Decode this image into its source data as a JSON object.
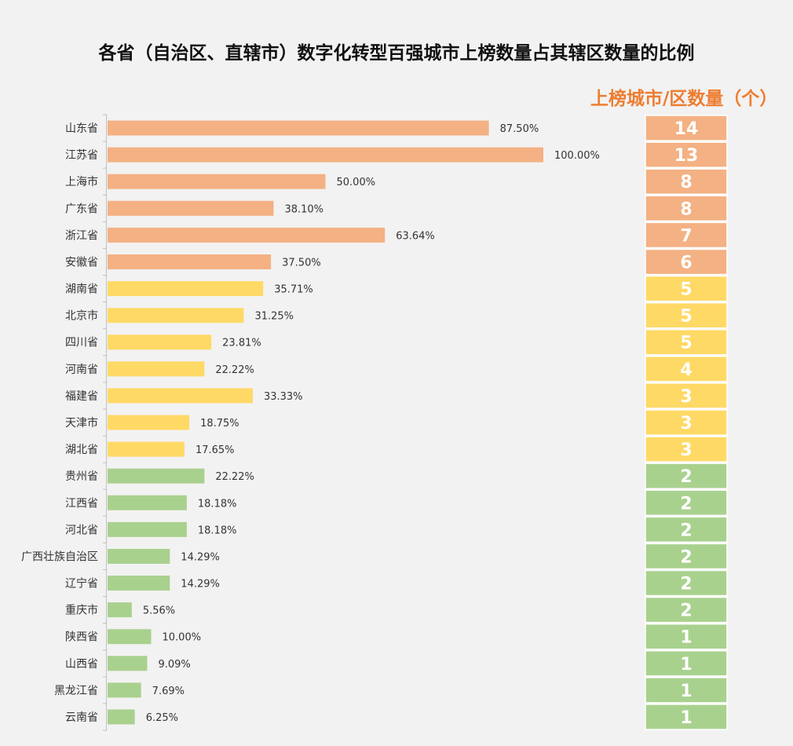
{
  "chart_data": {
    "type": "bar",
    "orientation": "horizontal",
    "title": "各省（自治区、直辖市）数字化转型百强城市上榜数量占其辖区数量的比例",
    "count_header": "上榜城市/区数量（个）",
    "xlim": [
      0,
      100
    ],
    "value_suffix": "%",
    "colors": {
      "tier1": "#f4b183",
      "tier2": "#ffd966",
      "tier3": "#a9d18e"
    },
    "categories": [
      "山东省",
      "江苏省",
      "上海市",
      "广东省",
      "浙江省",
      "安徽省",
      "湖南省",
      "北京市",
      "四川省",
      "河南省",
      "福建省",
      "天津市",
      "湖北省",
      "贵州省",
      "江西省",
      "河北省",
      "广西壮族自治区",
      "辽宁省",
      "重庆市",
      "陕西省",
      "山西省",
      "黑龙江省",
      "云南省"
    ],
    "values": [
      87.5,
      100.0,
      50.0,
      38.1,
      63.64,
      37.5,
      35.71,
      31.25,
      23.81,
      22.22,
      33.33,
      18.75,
      17.65,
      22.22,
      18.18,
      18.18,
      14.29,
      14.29,
      5.56,
      10.0,
      9.09,
      7.69,
      6.25
    ],
    "value_labels": [
      "87.50%",
      "100.00%",
      "50.00%",
      "38.10%",
      "63.64%",
      "37.50%",
      "35.71%",
      "31.25%",
      "23.81%",
      "22.22%",
      "33.33%",
      "18.75%",
      "17.65%",
      "22.22%",
      "18.18%",
      "18.18%",
      "14.29%",
      "14.29%",
      "5.56%",
      "10.00%",
      "9.09%",
      "7.69%",
      "6.25%"
    ],
    "counts": [
      14,
      13,
      8,
      8,
      7,
      6,
      5,
      5,
      5,
      4,
      3,
      3,
      3,
      2,
      2,
      2,
      2,
      2,
      2,
      1,
      1,
      1,
      1
    ],
    "tiers": [
      1,
      1,
      1,
      1,
      1,
      1,
      2,
      2,
      2,
      2,
      2,
      2,
      2,
      3,
      3,
      3,
      3,
      3,
      3,
      3,
      3,
      3,
      3
    ]
  }
}
